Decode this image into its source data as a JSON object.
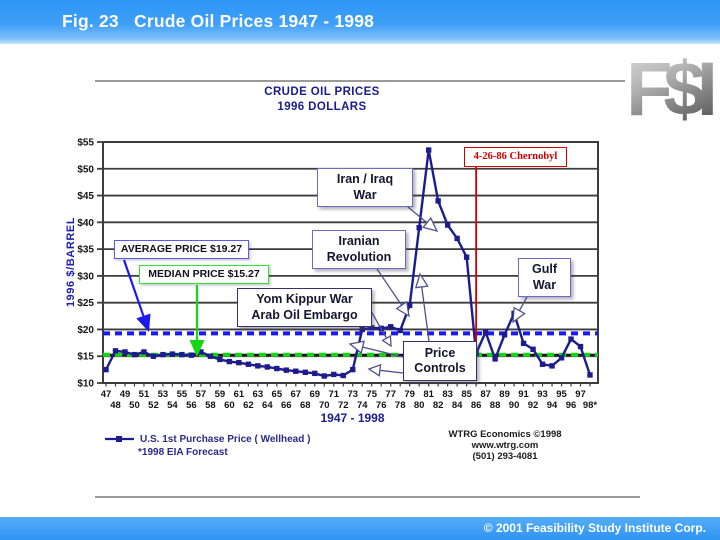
{
  "header": {
    "title": "Fig. 23   Crude Oil Prices 1947 - 1998"
  },
  "logo_text": "F$I",
  "footer": {
    "copyright": "© 2001 Feasibility Study Institute Corp."
  },
  "chart_data": {
    "type": "line",
    "title": "CRUDE OIL PRICES",
    "subtitle": "1996 DOLLARS",
    "ylabel": "1996 $/BARREL",
    "xlabel": "1947 - 1998",
    "ylim": [
      10,
      55
    ],
    "ytick_step": 5,
    "ytick_labels": [
      "$55",
      "$50",
      "$45",
      "$40",
      "$35",
      "$30",
      "$25",
      "$20",
      "$15",
      "$10"
    ],
    "grid": true,
    "x": [
      1947,
      1948,
      1949,
      1950,
      1951,
      1952,
      1953,
      1954,
      1955,
      1956,
      1957,
      1958,
      1959,
      1960,
      1961,
      1962,
      1963,
      1964,
      1965,
      1966,
      1967,
      1968,
      1969,
      1970,
      1971,
      1972,
      1973,
      1974,
      1975,
      1976,
      1977,
      1978,
      1979,
      1980,
      1981,
      1982,
      1983,
      1984,
      1985,
      1986,
      1987,
      1988,
      1989,
      1990,
      1991,
      1992,
      1993,
      1994,
      1995,
      1996,
      1997,
      1998
    ],
    "x_tick_labels_top": [
      "47",
      "49",
      "51",
      "53",
      "55",
      "57",
      "59",
      "61",
      "63",
      "65",
      "67",
      "69",
      "71",
      "73",
      "75",
      "77",
      "79",
      "81",
      "83",
      "85",
      "87",
      "89",
      "91",
      "93",
      "95",
      "97"
    ],
    "x_tick_labels_bottom": [
      "48",
      "50",
      "52",
      "54",
      "56",
      "58",
      "60",
      "62",
      "64",
      "66",
      "68",
      "70",
      "72",
      "74",
      "76",
      "78",
      "80",
      "82",
      "84",
      "86",
      "88",
      "90",
      "92",
      "94",
      "96",
      "98*"
    ],
    "series": [
      {
        "name": "U.S. 1st Purchase Price ( Wellhead )",
        "color": "#1c1c8e",
        "values": [
          12.5,
          16,
          15.8,
          15.3,
          15.8,
          15,
          15.3,
          15.4,
          15.3,
          15.2,
          15.8,
          15,
          14.4,
          14,
          13.8,
          13.5,
          13.2,
          13,
          12.7,
          12.4,
          12.2,
          12,
          11.8,
          11.3,
          11.6,
          11.4,
          12.5,
          20,
          20.3,
          20.2,
          20.5,
          19.8,
          24.5,
          39,
          53.5,
          44,
          39.5,
          37,
          33.5,
          15.5,
          19.5,
          14.5,
          19,
          23,
          17.4,
          16.3,
          13.5,
          13.2,
          14.7,
          18.2,
          16.8,
          11.5
        ]
      }
    ],
    "reference_lines": [
      {
        "label": "AVERAGE PRICE  $19.27",
        "value": 19.27,
        "color": "#1a1aee",
        "style": "dashed"
      },
      {
        "label": "MEDIAN PRICE  $15.27",
        "value": 15.27,
        "color": "#15d615",
        "style": "dashed"
      }
    ],
    "event_line": {
      "label": "4-26-86 Chernobyl",
      "year": 1986,
      "color": "#d40000"
    },
    "annotations": {
      "iran_iraq": "Iran / Iraq\nWar",
      "iranian_revolution": "Iranian\nRevolution",
      "yom_kippur": "Yom Kippur War\nArab Oil Embargo",
      "price_controls": "Price\nControls",
      "gulf_war": "Gulf\nWar"
    },
    "legend": {
      "series_label": "U.S. 1st Purchase Price ( Wellhead )",
      "footnote": "*1998 EIA Forecast"
    },
    "credit_lines": [
      "WTRG Economics  ©1998",
      "www.wtrg.com",
      "(501) 293-4081"
    ],
    "legend_position": "bottom-left"
  }
}
